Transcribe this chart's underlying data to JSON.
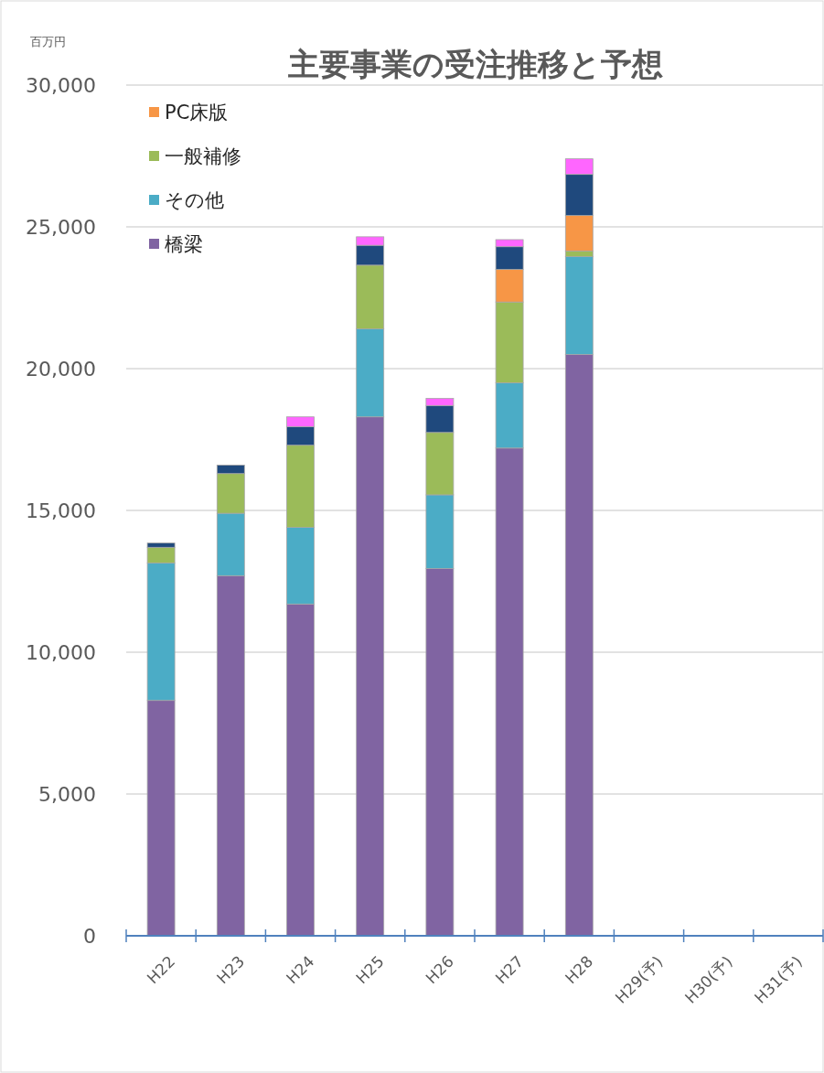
{
  "chart_data": {
    "type": "bar",
    "title": "主要事業の受注推移と予想",
    "ylabel": "百万円",
    "stacked": true,
    "categories": [
      "H22",
      "H23",
      "H24",
      "H25",
      "H26",
      "H27",
      "H28",
      "H29(予)",
      "H30(予)",
      "H31(予)"
    ],
    "series": [
      {
        "name": "橋梁",
        "color": "#8064a2",
        "values": [
          8300,
          12700,
          11700,
          18300,
          12950,
          17200,
          20500,
          null,
          null,
          null
        ]
      },
      {
        "name": "その他",
        "color": "#4bacc6",
        "values": [
          4850,
          2200,
          2700,
          3100,
          2600,
          2300,
          3450,
          null,
          null,
          null
        ]
      },
      {
        "name": "一般補修",
        "color": "#9bbb59",
        "values": [
          550,
          1400,
          2900,
          2250,
          2200,
          2850,
          200,
          null,
          null,
          null
        ]
      },
      {
        "name": "PC床版",
        "color": "#f79646",
        "values": [
          0,
          0,
          0,
          0,
          0,
          1150,
          1250,
          null,
          null,
          null
        ]
      },
      {
        "color": "#1f497d",
        "values": [
          150,
          300,
          650,
          700,
          950,
          800,
          1450,
          null,
          null,
          null
        ]
      },
      {
        "color": "#ff66ff",
        "values": [
          0,
          0,
          350,
          300,
          250,
          250,
          550,
          null,
          null,
          null
        ]
      }
    ],
    "ylim": [
      0,
      30000
    ],
    "yticks": [
      {
        "value": 0,
        "label": "0"
      },
      {
        "value": 5000,
        "label": "5,000"
      },
      {
        "value": 10000,
        "label": "10,000"
      },
      {
        "value": 15000,
        "label": "15,000"
      },
      {
        "value": 20000,
        "label": "20,000"
      },
      {
        "value": 25000,
        "label": "25,000"
      },
      {
        "value": 30000,
        "label": "30,000"
      }
    ],
    "grid": "y",
    "legend": "top left"
  }
}
